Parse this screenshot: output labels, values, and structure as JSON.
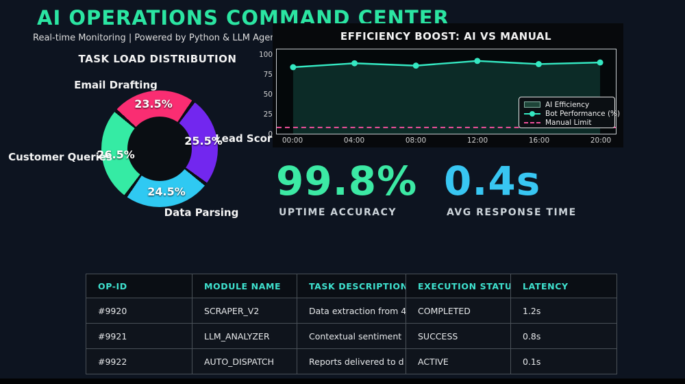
{
  "page": {
    "title": "AI OPERATIONS COMMAND CENTER",
    "subtitle": "Real-time Monitoring | Powered by Python & LLM Agents",
    "background_color": "#0d1420",
    "title_color": "#2be5a2"
  },
  "stats": [
    {
      "value": "99.8%",
      "label": "UPTIME ACCURACY",
      "color": "#3ce9a4"
    },
    {
      "value": "0.4s",
      "label": "AVG RESPONSE TIME",
      "color": "#38c6f2"
    }
  ],
  "chart_data": [
    {
      "type": "pie",
      "donut": true,
      "title": "TASK LOAD DISTRIBUTION",
      "labels": [
        "Email Drafting",
        "Lead Scoring",
        "Data Parsing",
        "Customer Queries"
      ],
      "values": [
        23.5,
        25.5,
        24.5,
        26.5
      ],
      "pct_labels": [
        "23.5%",
        "25.5%",
        "24.5%",
        "26.5%"
      ],
      "colors": [
        "#fa2d72",
        "#7227ef",
        "#2fc9f2",
        "#35eba4"
      ],
      "start_angle_deg": 311,
      "gap_deg": 3.5,
      "gap_color": "#0a0e13"
    },
    {
      "type": "line",
      "title": "EFFICIENCY BOOST: AI VS MANUAL",
      "x": [
        "00:00",
        "04:00",
        "08:00",
        "12:00",
        "16:00",
        "20:00"
      ],
      "y_ticks": [
        0,
        25,
        50,
        75,
        100
      ],
      "ylim": [
        0,
        107
      ],
      "grid": false,
      "series": [
        {
          "name": "Bot Performance (%)",
          "values": [
            85,
            90,
            87,
            93,
            89,
            91
          ],
          "color": "#35e8c2",
          "marker": "circle"
        }
      ],
      "area_fill": {
        "name": "AI Efficiency",
        "color": "rgba(53,232,194,0.16)"
      },
      "manual_limit": {
        "name": "Manual Limit",
        "value": 8,
        "color": "#f0509c",
        "style": "dashed"
      },
      "legend": [
        "AI Efficiency",
        "Bot Performance (%)",
        "Manual Limit"
      ],
      "legend_position": "lower right"
    },
    {
      "type": "table",
      "columns": [
        "OP-ID",
        "MODULE NAME",
        "TASK DESCRIPTION",
        "EXECUTION STATUS",
        "LATENCY"
      ],
      "rows": [
        [
          "#9920",
          "SCRAPER_V2",
          "Data extraction from 4",
          "COMPLETED",
          "1.2s"
        ],
        [
          "#9921",
          "LLM_ANALYZER",
          "Contextual sentiment",
          "SUCCESS",
          "0.8s"
        ],
        [
          "#9922",
          "AUTO_DISPATCH",
          "Reports delivered to d",
          "ACTIVE",
          "0.1s"
        ]
      ]
    }
  ]
}
